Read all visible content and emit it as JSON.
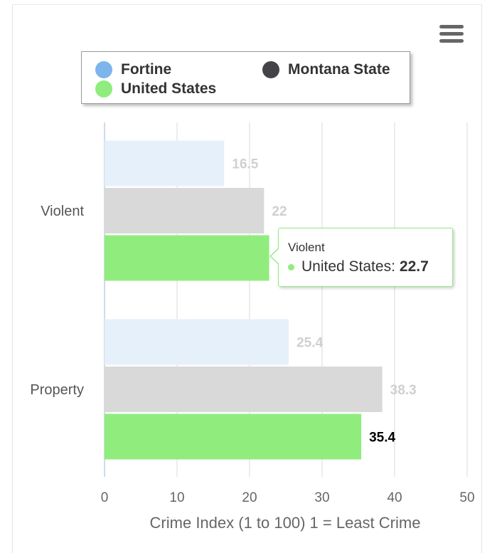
{
  "chart_data": {
    "type": "bar",
    "orientation": "horizontal",
    "categories": [
      "Violent",
      "Property"
    ],
    "series": [
      {
        "name": "Fortine",
        "values": [
          16.5,
          25.4
        ],
        "color": "#e6f0fb"
      },
      {
        "name": "Montana State",
        "values": [
          22,
          38.3
        ],
        "color": "#d9d9d9"
      },
      {
        "name": "United States",
        "values": [
          22.7,
          35.4
        ],
        "color": "#90ed7d"
      }
    ],
    "xlabel": "Crime Index (1 to 100) 1 = Least Crime",
    "xlim": [
      0,
      50
    ],
    "ticks": [
      0,
      10,
      20,
      30,
      40,
      50
    ],
    "grid": true,
    "legend_placement": "top"
  },
  "legend": {
    "items": [
      {
        "name": "Fortine",
        "color": "#7cb5ec"
      },
      {
        "name": "Montana State",
        "color": "#434348"
      },
      {
        "name": "United States",
        "color": "#90ed7d"
      }
    ]
  },
  "tooltip": {
    "category": "Violent",
    "series": "United States",
    "value": "22.7",
    "color": "#90ed7d"
  },
  "menu": {
    "icon": "hamburger-menu-icon"
  }
}
